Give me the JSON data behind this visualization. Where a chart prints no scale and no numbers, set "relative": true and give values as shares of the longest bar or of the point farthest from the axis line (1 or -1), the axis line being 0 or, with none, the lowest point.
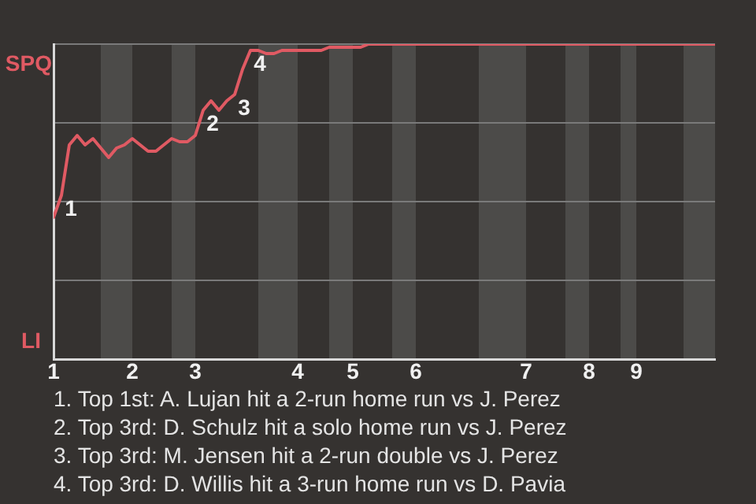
{
  "chart_data": {
    "type": "line",
    "relative": true,
    "categories": [
      "1",
      null,
      null,
      null,
      null,
      null,
      null,
      null,
      null,
      null,
      "2",
      null,
      null,
      null,
      null,
      null,
      null,
      null,
      "3",
      null,
      null,
      null,
      null,
      null,
      null,
      null,
      null,
      null,
      null,
      null,
      null,
      "4",
      null,
      null,
      null,
      null,
      null,
      null,
      "5",
      null,
      null,
      null,
      null,
      null,
      null,
      null,
      "6",
      null,
      null,
      null,
      null,
      null,
      null,
      null,
      null,
      null,
      null,
      null,
      null,
      null,
      "7",
      null,
      null,
      null,
      null,
      null,
      null,
      null,
      "8",
      null,
      null,
      null,
      null,
      null,
      "9",
      null,
      null,
      null,
      null,
      null,
      null,
      null,
      null,
      null,
      null
    ],
    "series": [
      {
        "color": "#e05a63",
        "values": [
          0.45,
          0.52,
          0.68,
          0.71,
          0.68,
          0.7,
          0.67,
          0.64,
          0.67,
          0.68,
          0.7,
          0.68,
          0.66,
          0.66,
          0.68,
          0.7,
          0.69,
          0.69,
          0.71,
          0.79,
          0.82,
          0.79,
          0.82,
          0.84,
          0.92,
          0.98,
          0.98,
          0.97,
          0.97,
          0.98,
          0.98,
          0.98,
          0.98,
          0.98,
          0.98,
          0.99,
          0.99,
          0.99,
          0.99,
          0.99,
          1.0,
          1.0,
          1.0,
          1.0,
          1.0,
          1.0,
          1.0,
          1.0,
          1.0,
          1.0,
          1.0,
          1.0,
          1.0,
          1.0,
          1.0,
          1.0,
          1.0,
          1.0,
          1.0,
          1.0,
          1.0,
          1.0,
          1.0,
          1.0,
          1.0,
          1.0,
          1.0,
          1.0,
          1.0,
          1.0,
          1.0,
          1.0,
          1.0,
          1.0,
          1.0,
          1.0,
          1.0,
          1.0,
          1.0,
          1.0,
          1.0,
          1.0,
          1.0,
          1.0,
          1.0
        ]
      }
    ],
    "grid": "y",
    "legend": false,
    "marker": "none",
    "line_style": "solid",
    "annotations": [
      {
        "text": "1",
        "y": 0.52
      },
      {
        "text": "2",
        "y": 0.79
      },
      {
        "text": "3",
        "y": 0.84
      },
      {
        "text": "4",
        "y": 0.98
      },
      "SPQ",
      "LI",
      "1. Top 1st: A. Lujan hit a 2-run home run vs J. Perez",
      "2. Top 3rd: D. Schulz hit a solo home run vs J. Perez",
      "3. Top 3rd: M. Jensen hit a 2-run double vs J. Perez",
      "4. Top 3rd: D. Willis hit a 3-run home run vs D. Pavia"
    ]
  }
}
